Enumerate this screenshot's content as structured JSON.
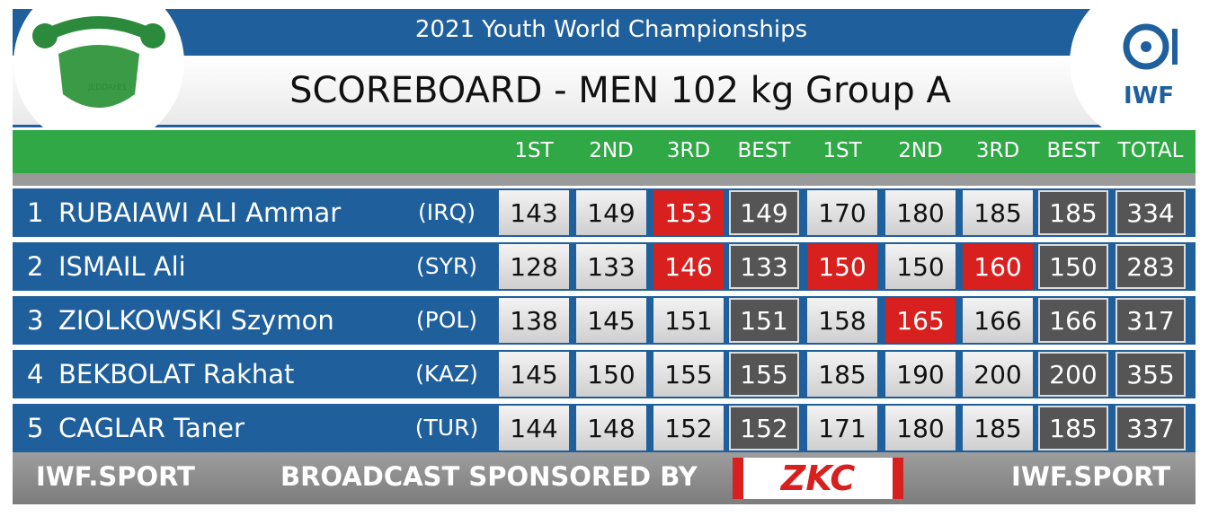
{
  "header": {
    "subtitle": "2021 Youth World Championships",
    "title": "SCOREBOARD - MEN 102 kg Group A",
    "left_logo": {
      "city": "JEDDAH",
      "year": "21"
    },
    "right_logo": "IWF"
  },
  "table": {
    "columns": [
      "1ST",
      "2ND",
      "3RD",
      "BEST",
      "1ST",
      "2ND",
      "3RD",
      "BEST",
      "TOTAL"
    ],
    "best_columns": [
      3,
      7,
      8
    ],
    "rows": [
      {
        "rank": "1",
        "name": "RUBAIAWI ALI Ammar",
        "country": "(IRQ)",
        "cells": [
          143,
          149,
          153,
          149,
          170,
          180,
          185,
          185,
          334
        ],
        "no_lift": [
          2
        ]
      },
      {
        "rank": "2",
        "name": "ISMAIL Ali",
        "country": "(SYR)",
        "cells": [
          128,
          133,
          146,
          133,
          150,
          150,
          160,
          150,
          283
        ],
        "no_lift": [
          2,
          4,
          6
        ]
      },
      {
        "rank": "3",
        "name": "ZIOLKOWSKI Szymon",
        "country": "(POL)",
        "cells": [
          138,
          145,
          151,
          151,
          158,
          165,
          166,
          166,
          317
        ],
        "no_lift": [
          5
        ]
      },
      {
        "rank": "4",
        "name": "BEKBOLAT Rakhat",
        "country": "(KAZ)",
        "cells": [
          145,
          150,
          155,
          155,
          185,
          190,
          200,
          200,
          355
        ],
        "no_lift": []
      },
      {
        "rank": "5",
        "name": "CAGLAR Taner",
        "country": "(TUR)",
        "cells": [
          144,
          148,
          152,
          152,
          171,
          180,
          185,
          185,
          337
        ],
        "no_lift": []
      }
    ]
  },
  "footer": {
    "left": "IWF.SPORT",
    "sponsor_text": "BROADCAST SPONSORED BY",
    "sponsor": "ZKC",
    "right": "IWF.SPORT"
  }
}
